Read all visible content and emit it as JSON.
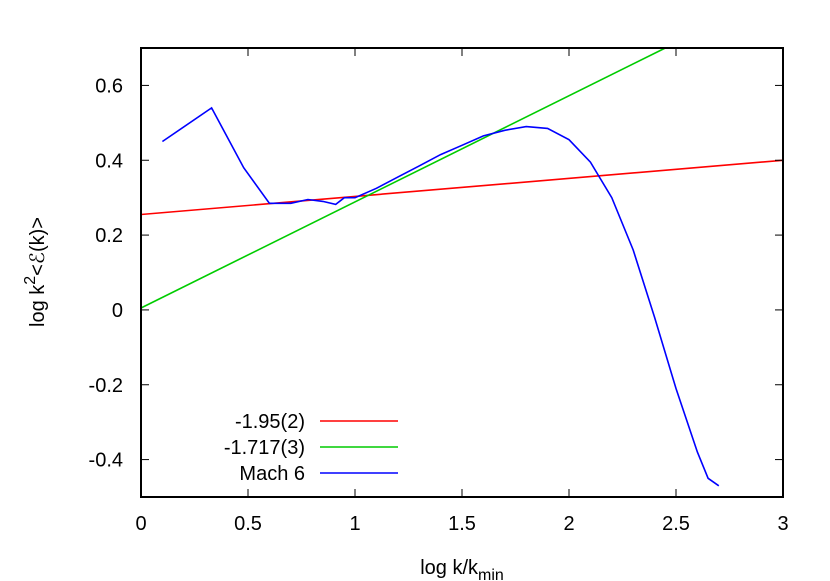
{
  "chart_data": {
    "type": "line",
    "xlabel": "log k/k",
    "xlabel_sub": "min",
    "ylabel": "log k",
    "ylabel_sup": "2",
    "ylabel_rest": "<ℰ(k)>",
    "xlim": [
      0,
      3
    ],
    "ylim": [
      -0.5,
      0.7
    ],
    "xticks": [
      0,
      0.5,
      1,
      1.5,
      2,
      2.5,
      3
    ],
    "xtick_labels": [
      "0",
      "0.5",
      "1",
      "1.5",
      "2",
      "2.5",
      "3"
    ],
    "yticks": [
      -0.4,
      -0.2,
      0,
      0.2,
      0.4,
      0.6
    ],
    "ytick_labels": [
      "-0.4",
      "-0.2",
      "0",
      "0.2",
      "0.4",
      "0.6"
    ],
    "grid": false,
    "legend_position": "bottom-left",
    "series": [
      {
        "name": "-1.95(2)",
        "color": "#ff0000",
        "x": [
          0,
          3
        ],
        "y": [
          0.255,
          0.4
        ]
      },
      {
        "name": "-1.717(3)",
        "color": "#00cc00",
        "x": [
          0,
          2.45
        ],
        "y": [
          0.005,
          0.7
        ]
      },
      {
        "name": "Mach 6",
        "color": "#0000ff",
        "x": [
          0.1,
          0.33,
          0.48,
          0.6,
          0.7,
          0.78,
          0.85,
          0.91,
          0.95,
          1.0,
          1.1,
          1.2,
          1.3,
          1.4,
          1.5,
          1.6,
          1.7,
          1.8,
          1.9,
          2.0,
          2.1,
          2.2,
          2.3,
          2.4,
          2.5,
          2.6,
          2.65,
          2.7
        ],
        "y": [
          0.45,
          0.54,
          0.38,
          0.285,
          0.285,
          0.295,
          0.29,
          0.282,
          0.3,
          0.3,
          0.325,
          0.355,
          0.385,
          0.415,
          0.44,
          0.465,
          0.48,
          0.49,
          0.485,
          0.455,
          0.395,
          0.3,
          0.16,
          -0.02,
          -0.21,
          -0.38,
          -0.45,
          -0.47
        ]
      }
    ]
  }
}
